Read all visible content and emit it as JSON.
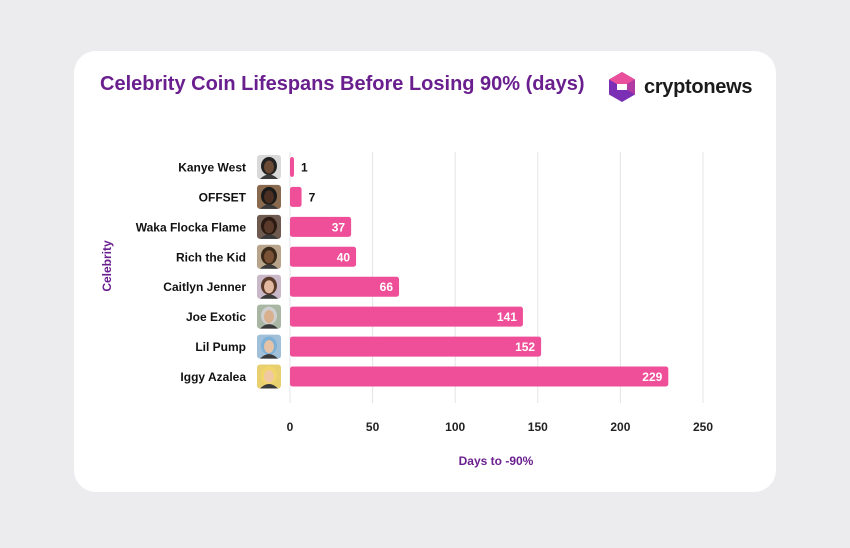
{
  "title": "Celebrity Coin Lifespans Before Losing 90% (days)",
  "logo": {
    "text": "cryptonews",
    "icon": "cryptonews-logo-icon"
  },
  "chart_data": {
    "type": "bar",
    "orientation": "horizontal",
    "categories": [
      "Kanye West",
      "OFFSET",
      "Waka Flocka Flame",
      "Rich the Kid",
      "Caitlyn Jenner",
      "Joe Exotic",
      "Lil Pump",
      "Iggy Azalea"
    ],
    "values": [
      1,
      7,
      37,
      40,
      66,
      141,
      152,
      229
    ],
    "xlabel": "Days to -90%",
    "ylabel": "Celebrity",
    "xlim": [
      0,
      250
    ],
    "xticks": [
      "0",
      "50",
      "100",
      "150",
      "200",
      "250"
    ],
    "grid": true,
    "colors": {
      "bar": "#ef4f98",
      "title": "#6a1f8e",
      "grid": "#e4e4e8"
    },
    "avatar_icons": [
      "avatar-kanye-west",
      "avatar-offset",
      "avatar-waka-flocka-flame",
      "avatar-rich-the-kid",
      "avatar-caitlyn-jenner",
      "avatar-joe-exotic",
      "avatar-lil-pump",
      "avatar-iggy-azalea"
    ]
  }
}
